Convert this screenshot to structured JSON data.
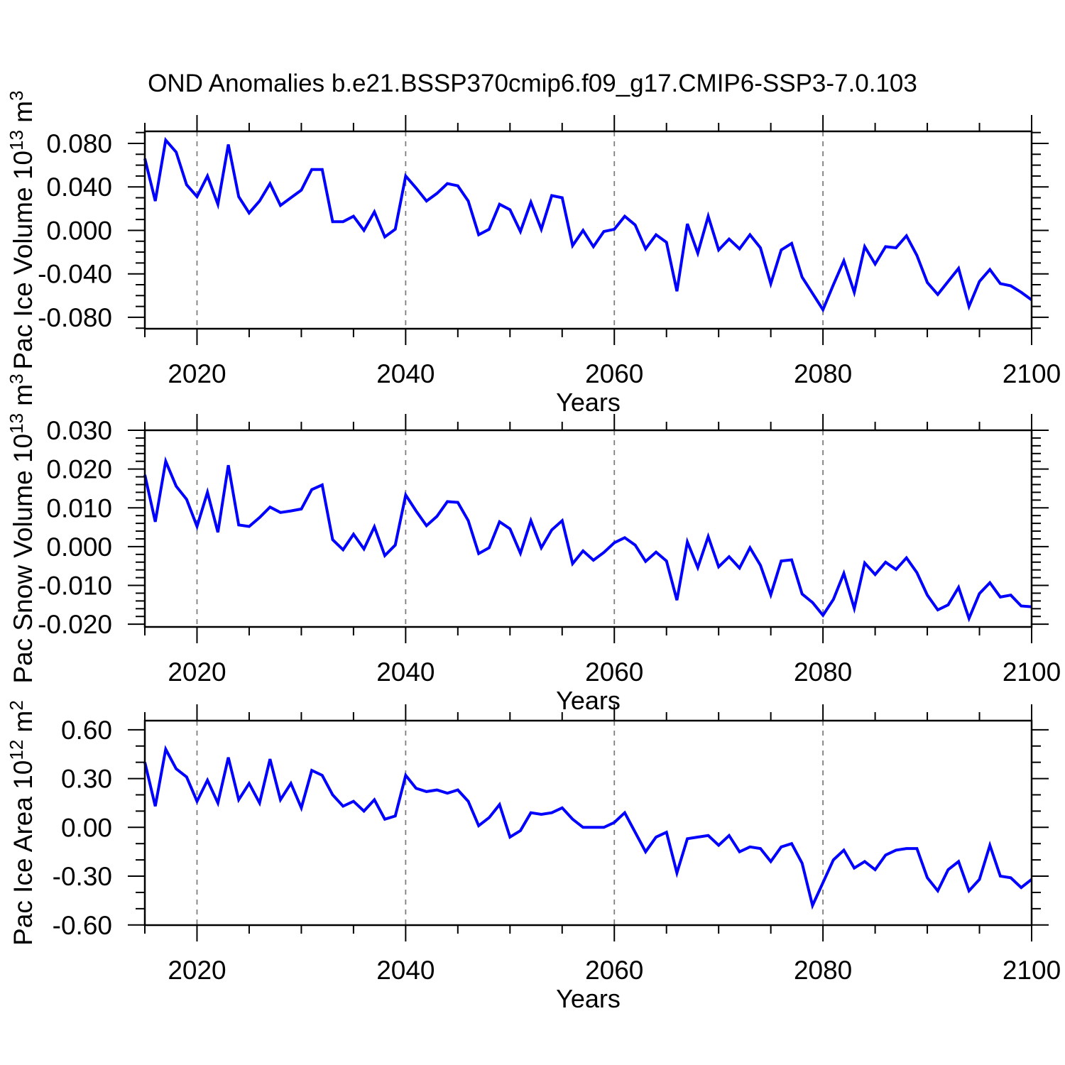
{
  "header": {
    "title": "OND Anomalies b.e21.BSSP370cmip6.f09_g17.CMIP6-SSP3-7.0.103"
  },
  "chart_data": [
    {
      "type": "line",
      "name": "pac-ice-volume",
      "ylabel": "Pac Ice Volume 10^13 m^3",
      "ylabel_parts": [
        {
          "t": "Pac Ice Volume 10"
        },
        {
          "t": "13",
          "sup": true
        },
        {
          "t": " m"
        },
        {
          "t": "3",
          "sup": true
        }
      ],
      "xlabel": "Years",
      "x_start": 2015,
      "x_end": 2100,
      "x_major_ticks": [
        2020,
        2040,
        2060,
        2080,
        2100
      ],
      "x_tick_labels": [
        "2020",
        "2040",
        "2060",
        "2080",
        "2100"
      ],
      "x_minor_ticks": [
        2015,
        2025,
        2030,
        2035,
        2045,
        2050,
        2055,
        2065,
        2070,
        2075,
        2085,
        2090,
        2095
      ],
      "x_gridlines": [
        2020,
        2040,
        2060,
        2080
      ],
      "y_ticks": [
        {
          "v": 0.08,
          "label": "0.080"
        },
        {
          "v": 0.04,
          "label": "0.040"
        },
        {
          "v": 0.0,
          "label": "0.000"
        },
        {
          "v": -0.04,
          "label": "-0.040"
        },
        {
          "v": -0.08,
          "label": "-0.080"
        }
      ],
      "y_minor_step": 0.01,
      "ylim": [
        -0.0905,
        0.0911
      ],
      "line_color": "#0000ff",
      "grid_color": "#7f7f7f",
      "values": [
        0.066,
        0.027,
        0.083,
        0.072,
        0.042,
        0.031,
        0.05,
        0.024,
        0.079,
        0.031,
        0.016,
        0.027,
        0.043,
        0.023,
        0.03,
        0.037,
        0.056,
        0.056,
        0.008,
        0.008,
        0.013,
        0.0,
        0.017,
        -0.006,
        0.001,
        0.05,
        0.039,
        0.027,
        0.034,
        0.043,
        0.041,
        0.027,
        -0.004,
        0.001,
        0.024,
        0.019,
        -0.001,
        0.026,
        0.001,
        0.032,
        0.03,
        -0.014,
        0.0,
        -0.015,
        -0.001,
        0.001,
        0.013,
        0.005,
        -0.017,
        -0.004,
        -0.011,
        -0.056,
        0.006,
        -0.021,
        0.013,
        -0.018,
        -0.008,
        -0.017,
        -0.004,
        -0.016,
        -0.049,
        -0.018,
        -0.012,
        -0.043,
        -0.058,
        -0.073,
        -0.05,
        -0.028,
        -0.057,
        -0.015,
        -0.031,
        -0.015,
        -0.016,
        -0.005,
        -0.023,
        -0.048,
        -0.059,
        -0.047,
        -0.035,
        -0.07,
        -0.047,
        -0.036,
        -0.049,
        -0.051,
        -0.057,
        -0.064
      ]
    },
    {
      "type": "line",
      "name": "pac-snow-volume",
      "ylabel": "Pac Snow Volume 10^13 m^3",
      "ylabel_parts": [
        {
          "t": "Pac Snow Volume 10"
        },
        {
          "t": "13",
          "sup": true
        },
        {
          "t": " m"
        },
        {
          "t": "3",
          "sup": true
        }
      ],
      "xlabel": "Years",
      "x_start": 2015,
      "x_end": 2100,
      "x_major_ticks": [
        2020,
        2040,
        2060,
        2080,
        2100
      ],
      "x_tick_labels": [
        "2020",
        "2040",
        "2060",
        "2080",
        "2100"
      ],
      "x_minor_ticks": [
        2015,
        2025,
        2030,
        2035,
        2045,
        2050,
        2055,
        2065,
        2070,
        2075,
        2085,
        2090,
        2095
      ],
      "x_gridlines": [
        2020,
        2040,
        2060,
        2080
      ],
      "y_ticks": [
        {
          "v": 0.03,
          "label": "0.030"
        },
        {
          "v": 0.02,
          "label": "0.020"
        },
        {
          "v": 0.01,
          "label": "0.010"
        },
        {
          "v": 0.0,
          "label": "0.000"
        },
        {
          "v": -0.01,
          "label": "-0.010"
        },
        {
          "v": -0.02,
          "label": "-0.020"
        }
      ],
      "y_minor_step": 0.002,
      "ylim": [
        -0.0207,
        0.03
      ],
      "line_color": "#0000ff",
      "grid_color": "#7f7f7f",
      "values": [
        0.0185,
        0.0064,
        0.022,
        0.0156,
        0.0122,
        0.0052,
        0.014,
        0.0037,
        0.021,
        0.0056,
        0.0052,
        0.0075,
        0.0102,
        0.0088,
        0.0092,
        0.0097,
        0.0147,
        0.0159,
        0.0018,
        -0.0008,
        0.0032,
        -0.0006,
        0.0051,
        -0.0023,
        0.0004,
        0.0133,
        0.0092,
        0.0054,
        0.0078,
        0.0116,
        0.0114,
        0.0067,
        -0.0018,
        -0.0003,
        0.0064,
        0.0046,
        -0.0017,
        0.0067,
        -0.0003,
        0.0043,
        0.0067,
        -0.0044,
        -0.0011,
        -0.0035,
        -0.0015,
        0.001,
        0.0023,
        0.0004,
        -0.0038,
        -0.0014,
        -0.0037,
        -0.0138,
        0.0012,
        -0.0054,
        0.0026,
        -0.0052,
        -0.0026,
        -0.0055,
        -0.0003,
        -0.0048,
        -0.0124,
        -0.0037,
        -0.0034,
        -0.0122,
        -0.0144,
        -0.0177,
        -0.0136,
        -0.0069,
        -0.0159,
        -0.0042,
        -0.0072,
        -0.004,
        -0.0059,
        -0.0029,
        -0.0067,
        -0.0125,
        -0.0163,
        -0.015,
        -0.0105,
        -0.0185,
        -0.0121,
        -0.0093,
        -0.013,
        -0.0125,
        -0.0153,
        -0.0155
      ]
    },
    {
      "type": "line",
      "name": "pac-ice-area",
      "ylabel": "Pac Ice Area 10^12 m^2",
      "ylabel_parts": [
        {
          "t": "Pac Ice Area 10"
        },
        {
          "t": "12",
          "sup": true
        },
        {
          "t": " m"
        },
        {
          "t": "2",
          "sup": true
        }
      ],
      "xlabel": "Years",
      "x_start": 2015,
      "x_end": 2100,
      "x_major_ticks": [
        2020,
        2040,
        2060,
        2080,
        2100
      ],
      "x_tick_labels": [
        "2020",
        "2040",
        "2060",
        "2080",
        "2100"
      ],
      "x_minor_ticks": [
        2015,
        2025,
        2030,
        2035,
        2045,
        2050,
        2055,
        2065,
        2070,
        2075,
        2085,
        2090,
        2095
      ],
      "x_gridlines": [
        2020,
        2040,
        2060,
        2080
      ],
      "y_ticks": [
        {
          "v": 0.6,
          "label": "0.60"
        },
        {
          "v": 0.3,
          "label": "0.30"
        },
        {
          "v": 0.0,
          "label": "0.00"
        },
        {
          "v": -0.3,
          "label": "-0.30"
        },
        {
          "v": -0.6,
          "label": "-0.60"
        }
      ],
      "y_minor_step": 0.1,
      "ylim": [
        -0.601,
        0.656
      ],
      "line_color": "#0000ff",
      "grid_color": "#7f7f7f",
      "values": [
        0.4,
        0.13,
        0.48,
        0.36,
        0.31,
        0.16,
        0.29,
        0.15,
        0.43,
        0.17,
        0.27,
        0.15,
        0.42,
        0.17,
        0.27,
        0.12,
        0.35,
        0.32,
        0.2,
        0.13,
        0.16,
        0.1,
        0.17,
        0.05,
        0.07,
        0.32,
        0.24,
        0.22,
        0.23,
        0.21,
        0.23,
        0.16,
        0.01,
        0.06,
        0.14,
        -0.06,
        -0.02,
        0.09,
        0.08,
        0.09,
        0.12,
        0.05,
        0.0,
        0.0,
        0.0,
        0.03,
        0.09,
        -0.03,
        -0.15,
        -0.06,
        -0.03,
        -0.28,
        -0.07,
        -0.06,
        -0.05,
        -0.11,
        -0.05,
        -0.15,
        -0.12,
        -0.13,
        -0.21,
        -0.12,
        -0.1,
        -0.22,
        -0.48,
        -0.34,
        -0.2,
        -0.14,
        -0.25,
        -0.21,
        -0.26,
        -0.17,
        -0.14,
        -0.13,
        -0.13,
        -0.31,
        -0.39,
        -0.26,
        -0.21,
        -0.39,
        -0.32,
        -0.11,
        -0.3,
        -0.31,
        -0.37,
        -0.32
      ]
    }
  ]
}
